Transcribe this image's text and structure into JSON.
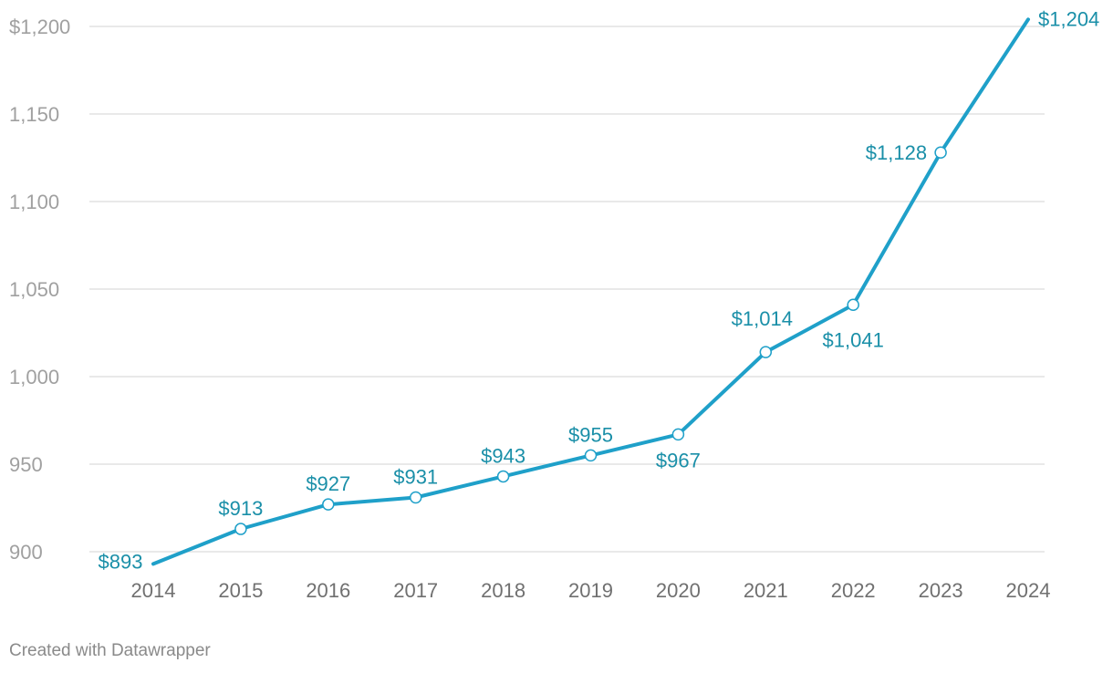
{
  "chart_data": {
    "type": "line",
    "title": "",
    "xlabel": "",
    "ylabel": "",
    "x": [
      2014,
      2015,
      2016,
      2017,
      2018,
      2019,
      2020,
      2021,
      2022,
      2023,
      2024
    ],
    "series": [
      {
        "values": [
          893,
          913,
          927,
          931,
          943,
          955,
          967,
          1014,
          1041,
          1128,
          1204
        ]
      }
    ],
    "data_labels": [
      "$893",
      "$913",
      "$927",
      "$931",
      "$943",
      "$955",
      "$967",
      "$1,014",
      "$1,041",
      "$1,128",
      "$1,204"
    ],
    "y_ticks": [
      900,
      950,
      1000,
      1050,
      1100,
      1150,
      1200
    ],
    "y_tick_labels": [
      "900",
      "950",
      "1,000",
      "1,050",
      "1,100",
      "1,150",
      "$1,200"
    ],
    "x_tick_labels": [
      "2014",
      "2015",
      "2016",
      "2017",
      "2018",
      "2019",
      "2020",
      "2021",
      "2022",
      "2023",
      "2024"
    ],
    "ylim": [
      900,
      1200
    ],
    "grid": "horizontal",
    "line_color": "#1fa0c9",
    "label_color": "#1a8fa8"
  },
  "footer": {
    "credit": "Created with Datawrapper"
  }
}
